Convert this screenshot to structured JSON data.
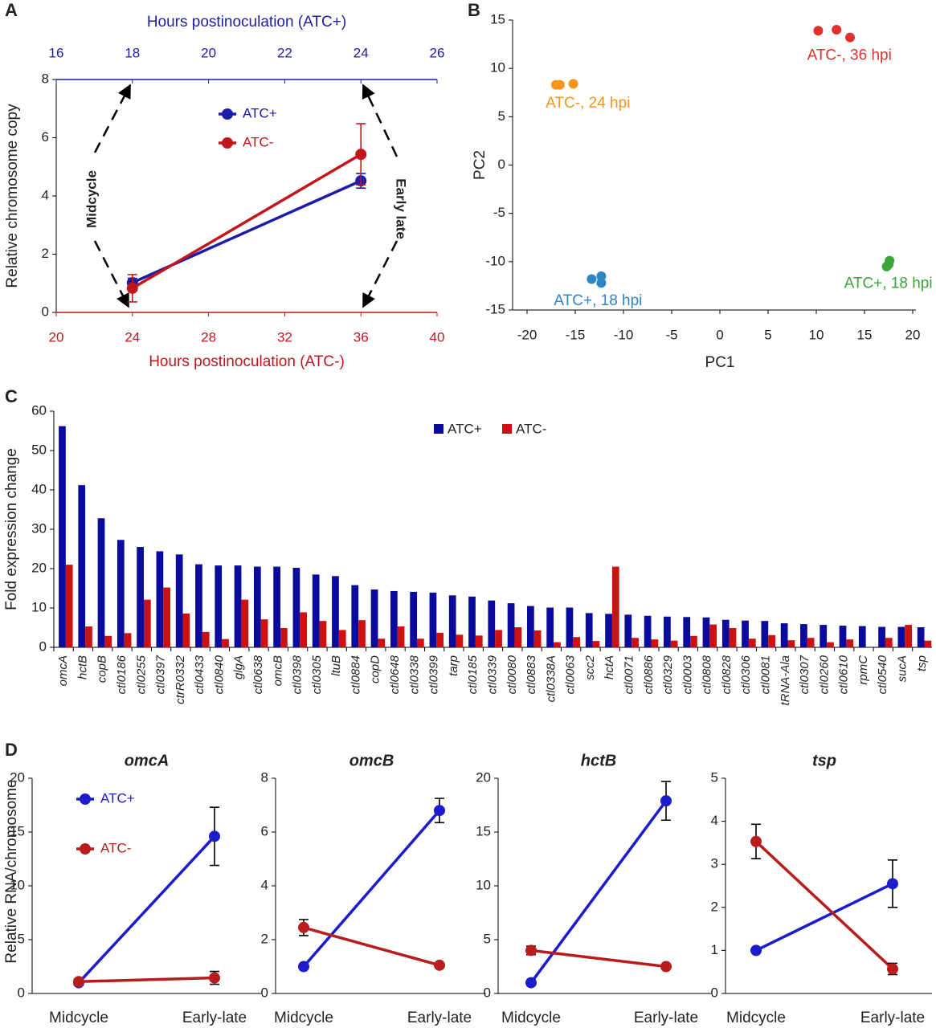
{
  "chart_data": [
    {
      "type": "line",
      "panel": "A",
      "ylabel": "Relative chromosome copy",
      "xlabel": "Hours postinoculation (ATC-)",
      "x2label": "Hours postinoculation (ATC+)",
      "xlim": [
        20,
        40
      ],
      "xticks": [
        20,
        24,
        28,
        32,
        36,
        40
      ],
      "x_axis_color": "#c1161c",
      "x2lim": [
        16,
        26
      ],
      "x2ticks": [
        16,
        18,
        20,
        22,
        24,
        26
      ],
      "x2_axis_color": "#1c1ca8",
      "ylim": [
        0,
        8
      ],
      "yticks": [
        0,
        2,
        4,
        6,
        8
      ],
      "annotations": [
        "Midcycle",
        "Early late"
      ],
      "legend": true,
      "series": [
        {
          "name": "ATC+",
          "color": "#1c1ca8",
          "xaxis": "x2",
          "x": [
            18,
            24
          ],
          "values": [
            1.02,
            4.52
          ],
          "errors": [
            0.15,
            0.25
          ]
        },
        {
          "name": "ATC-",
          "color": "#c1161c",
          "x": [
            24,
            36
          ],
          "values": [
            0.83,
            5.43
          ],
          "errors": [
            0.47,
            1.05
          ]
        }
      ]
    },
    {
      "type": "scatter",
      "panel": "B",
      "xlabel": "PC1",
      "ylabel": "PC2",
      "xlim": [
        -20,
        20
      ],
      "xticks": [
        -20,
        -15,
        -10,
        -5,
        0,
        5,
        10,
        15,
        20
      ],
      "ylim": [
        -15,
        15
      ],
      "yticks": [
        -15,
        -10,
        -5,
        0,
        5,
        10,
        15
      ],
      "series": [
        {
          "name": "ATC-, 24 hpi",
          "color": "#f7941d",
          "x": [
            -17.0,
            -16.6,
            -15.2
          ],
          "values": [
            8.3,
            8.3,
            8.4
          ]
        },
        {
          "name": "ATC-, 36 hpi",
          "color": "#e0312f",
          "x": [
            10.2,
            12.1,
            13.5
          ],
          "values": [
            13.9,
            14.0,
            13.2
          ]
        },
        {
          "name": "ATC+, 18 hpi",
          "color": "#2e86c1",
          "x": [
            -13.3,
            -12.3,
            -12.3
          ],
          "values": [
            -11.8,
            -11.5,
            -12.2
          ]
        },
        {
          "name": "ATC+, 18 hpi",
          "color": "#3aa53a",
          "x": [
            17.6,
            17.5,
            17.3
          ],
          "values": [
            -9.9,
            -10.3,
            -10.5
          ]
        }
      ]
    },
    {
      "type": "bar",
      "panel": "C",
      "ylabel": "Fold expression change",
      "ylim": [
        0,
        60
      ],
      "yticks": [
        0,
        10,
        20,
        30,
        40,
        50,
        60
      ],
      "legend": true,
      "categories": [
        "omcA",
        "hctB",
        "copB",
        "ctl0186",
        "ctl0255",
        "ctl0397",
        "ctrR0332",
        "ctl0433",
        "ctl0840",
        "glgA",
        "ctl0638",
        "omcB",
        "ctl0398",
        "ctl0305",
        "ltuB",
        "ctl0884",
        "copD",
        "ctl0648",
        "ctl0338",
        "ctl0399",
        "tarp",
        "ctl0185",
        "ctl0339",
        "ctl0080",
        "ctl0883",
        "ctl0338A",
        "ctl0063",
        "scc2",
        "hctA",
        "ctl0071",
        "ctl0886",
        "ctl0329",
        "ctl0003",
        "ctl0808",
        "ctl0828",
        "ctl0306",
        "ctl0081",
        "tRNA-Ala",
        "ctl0307",
        "ctl0260",
        "ctl0610",
        "rpmC",
        "ctl0540",
        "sucA",
        "tsp"
      ],
      "series": [
        {
          "name": "ATC+",
          "color": "#0a0a9c",
          "values": [
            56.2,
            41.2,
            32.8,
            27.3,
            25.5,
            24.4,
            23.6,
            21.1,
            20.8,
            20.8,
            20.5,
            20.5,
            20.2,
            18.5,
            18.1,
            15.8,
            14.7,
            14.3,
            14.1,
            13.9,
            13.2,
            12.9,
            11.9,
            11.2,
            10.5,
            10.1,
            10.1,
            8.7,
            8.5,
            8.3,
            8.0,
            7.8,
            7.7,
            7.6,
            7.0,
            6.8,
            6.7,
            6.1,
            5.9,
            5.7,
            5.5,
            5.4,
            5.2,
            5.2,
            5.1
          ]
        },
        {
          "name": "ATC-",
          "color": "#cc1111",
          "values": [
            21.0,
            5.3,
            2.9,
            3.6,
            12.1,
            15.2,
            8.6,
            3.9,
            2.1,
            12.1,
            7.1,
            4.9,
            8.9,
            6.7,
            4.4,
            6.9,
            2.2,
            5.3,
            2.2,
            3.7,
            3.2,
            3.0,
            4.4,
            5.1,
            4.3,
            1.3,
            2.6,
            1.6,
            20.5,
            2.4,
            2.0,
            1.7,
            2.9,
            5.8,
            4.9,
            2.2,
            3.1,
            1.8,
            2.4,
            1.3,
            2.0,
            null,
            2.4,
            5.7,
            1.7
          ]
        }
      ]
    },
    {
      "type": "line",
      "panel": "D",
      "title": "omcA",
      "ylabel": "Relative RNA/chromosome",
      "legend": true,
      "categories": [
        "Midcycle",
        "Early-late"
      ],
      "ylim": [
        0,
        20
      ],
      "yticks": [
        0,
        5,
        10,
        15,
        20
      ],
      "series": [
        {
          "name": "ATC+",
          "color": "#1c1ccc",
          "values": [
            1.0,
            14.6
          ],
          "errors": [
            0.2,
            2.7
          ]
        },
        {
          "name": "ATC-",
          "color": "#b81c1c",
          "values": [
            1.1,
            1.45
          ],
          "errors": [
            0.2,
            0.6
          ]
        }
      ]
    },
    {
      "type": "line",
      "title": "omcB",
      "categories": [
        "Midcycle",
        "Early-late"
      ],
      "ylim": [
        0,
        8
      ],
      "yticks": [
        0,
        2,
        4,
        6,
        8
      ],
      "series": [
        {
          "color": "#1c1ccc",
          "values": [
            1.0,
            6.8
          ],
          "errors": [
            0,
            0.45
          ]
        },
        {
          "color": "#b81c1c",
          "values": [
            2.45,
            1.05
          ],
          "errors": [
            0.3,
            0
          ]
        }
      ]
    },
    {
      "type": "line",
      "title": "hctB",
      "categories": [
        "Midcycle",
        "Early-late"
      ],
      "ylim": [
        0,
        20
      ],
      "yticks": [
        0,
        5,
        10,
        15,
        20
      ],
      "series": [
        {
          "color": "#1c1ccc",
          "values": [
            1.0,
            17.9
          ],
          "errors": [
            0,
            1.8
          ]
        },
        {
          "color": "#b81c1c",
          "values": [
            4.0,
            2.5
          ],
          "errors": [
            0.4,
            0
          ]
        }
      ]
    },
    {
      "type": "line",
      "title": "tsp",
      "categories": [
        "Midcycle",
        "Early-late"
      ],
      "ylim": [
        0,
        5
      ],
      "yticks": [
        0,
        1,
        2,
        3,
        4,
        5
      ],
      "series": [
        {
          "color": "#1c1ccc",
          "values": [
            1.0,
            2.55
          ],
          "errors": [
            0,
            0.55
          ]
        },
        {
          "color": "#b81c1c",
          "values": [
            3.53,
            0.57
          ],
          "errors": [
            0.4,
            0.13
          ]
        }
      ]
    }
  ]
}
